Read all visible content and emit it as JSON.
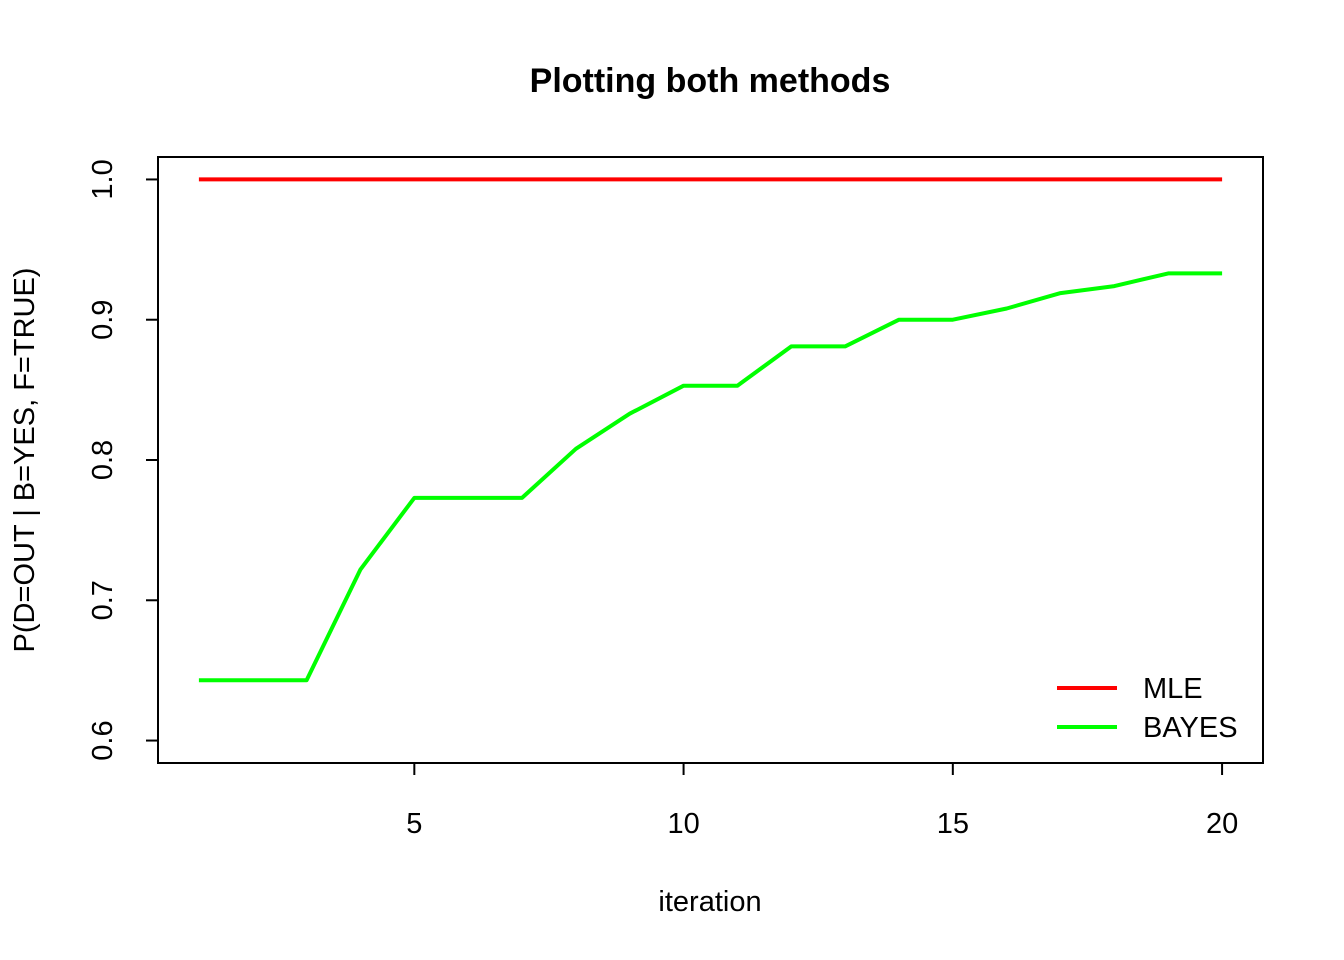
{
  "chart_data": {
    "type": "line",
    "title": "Plotting both methods",
    "xlabel": "iteration",
    "ylabel": "P(D=OUT | B=YES, F=TRUE)",
    "xlim": [
      1,
      20
    ],
    "ylim": [
      0.6,
      1.0
    ],
    "x_ticks": [
      5,
      10,
      15,
      20
    ],
    "y_ticks": [
      0.6,
      0.7,
      0.8,
      0.9,
      1.0
    ],
    "y_tick_labels": [
      "0.6",
      "0.7",
      "0.8",
      "0.9",
      "1.0"
    ],
    "grid": false,
    "legend": {
      "position": "bottom-right"
    },
    "x": [
      1,
      2,
      3,
      4,
      5,
      6,
      7,
      8,
      9,
      10,
      11,
      12,
      13,
      14,
      15,
      16,
      17,
      18,
      19,
      20
    ],
    "series": [
      {
        "name": "MLE",
        "color": "#ff0000",
        "values": [
          1,
          1,
          1,
          1,
          1,
          1,
          1,
          1,
          1,
          1,
          1,
          1,
          1,
          1,
          1,
          1,
          1,
          1,
          1,
          1
        ]
      },
      {
        "name": "BAYES",
        "color": "#00ff00",
        "values": [
          0.643,
          0.643,
          0.643,
          0.722,
          0.773,
          0.773,
          0.773,
          0.808,
          0.833,
          0.853,
          0.853,
          0.881,
          0.881,
          0.9,
          0.9,
          0.908,
          0.919,
          0.924,
          0.933,
          0.933
        ]
      }
    ]
  }
}
